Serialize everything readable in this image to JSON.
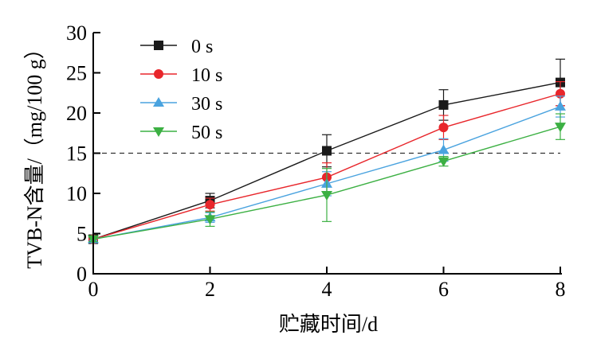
{
  "chart_data": {
    "type": "line",
    "title": "",
    "xlabel": "贮藏时间/d",
    "ylabel": "TVB-N含量/（mg/100 g）",
    "xlim": [
      0,
      8
    ],
    "ylim": [
      0,
      30
    ],
    "xticks": [
      0,
      2,
      4,
      6,
      8
    ],
    "yticks": [
      0,
      5,
      10,
      15,
      20,
      25,
      30
    ],
    "grid": false,
    "legend_position": "top-left",
    "x": [
      0,
      2,
      4,
      6,
      8
    ],
    "series": [
      {
        "name": "0 s",
        "values": [
          4.3,
          9.1,
          15.3,
          21.0,
          23.8
        ],
        "errors": [
          0.3,
          0.9,
          2.0,
          1.9,
          2.9
        ],
        "color": "#1a1a1a",
        "marker": "square"
      },
      {
        "name": "10 s",
        "values": [
          4.3,
          8.6,
          12.0,
          18.2,
          22.4
        ],
        "errors": [
          0.3,
          0.8,
          1.8,
          1.5,
          1.5
        ],
        "color": "#e8262b",
        "marker": "circle"
      },
      {
        "name": "30 s",
        "values": [
          4.3,
          7.0,
          11.2,
          15.4,
          20.8
        ],
        "errors": [
          0.3,
          0.6,
          1.5,
          1.4,
          1.3
        ],
        "color": "#4aa3df",
        "marker": "triangle-up"
      },
      {
        "name": "50 s",
        "values": [
          4.3,
          6.8,
          9.8,
          14.0,
          18.3
        ],
        "errors": [
          0.3,
          0.9,
          3.3,
          0.6,
          1.6
        ],
        "color": "#3cb043",
        "marker": "triangle-down"
      }
    ],
    "reference_line": {
      "y": 15,
      "style": "dashed",
      "color": "#333333"
    }
  }
}
